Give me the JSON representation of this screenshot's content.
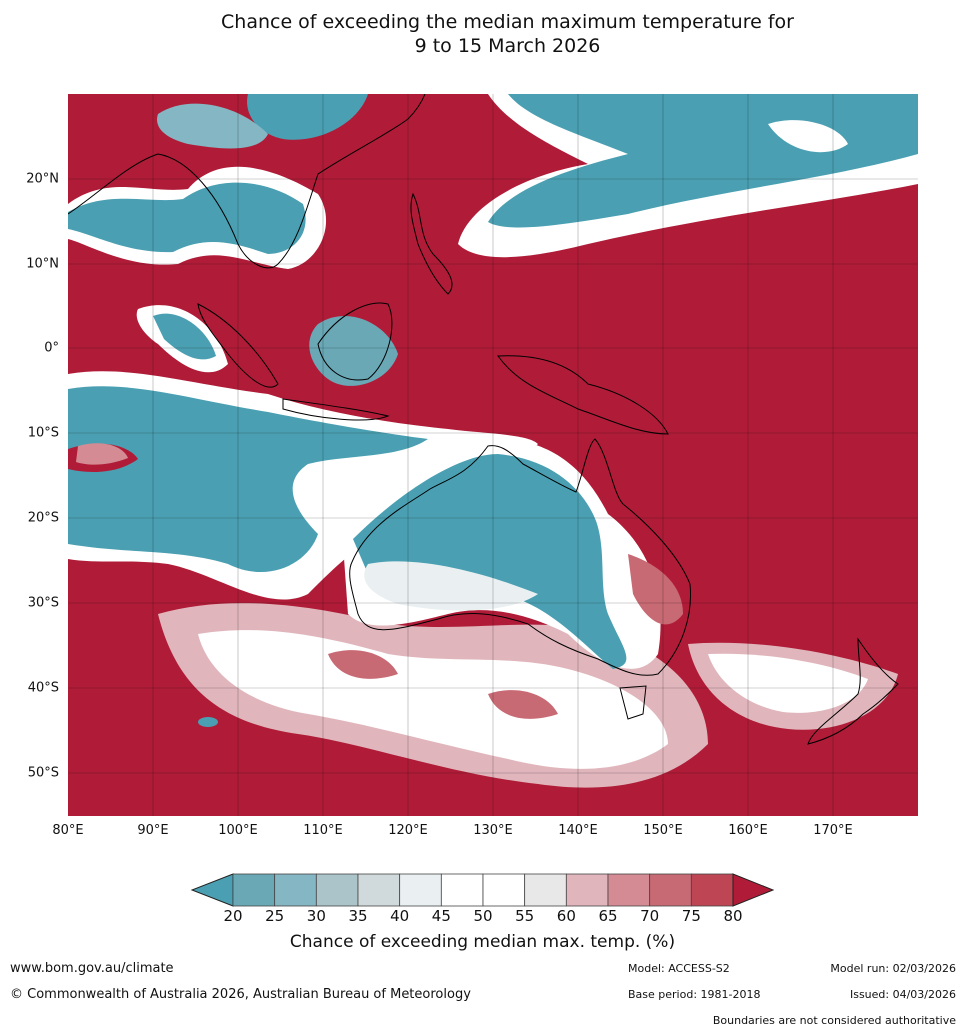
{
  "title": {
    "line1": "Chance of exceeding the median maximum temperature for",
    "line2": "9 to 15 March 2026"
  },
  "map": {
    "lat_labels": [
      "20°N",
      "10°N",
      "0°",
      "10°S",
      "20°S",
      "30°S",
      "40°S",
      "50°S"
    ],
    "lon_labels": [
      "80°E",
      "90°E",
      "100°E",
      "110°E",
      "120°E",
      "130°E",
      "140°E",
      "150°E",
      "160°E",
      "170°E"
    ],
    "extent": {
      "lon": [
        80,
        180
      ],
      "lat": [
        -55,
        30
      ]
    }
  },
  "colorbar": {
    "ticks": [
      "20",
      "25",
      "30",
      "35",
      "40",
      "45",
      "50",
      "55",
      "60",
      "65",
      "70",
      "75",
      "80"
    ],
    "colors": [
      "#4aa0b2",
      "#6aa8b6",
      "#85b6c3",
      "#aac4c9",
      "#d0d9db",
      "#eaf0f2",
      "#ffffff",
      "#ffffff",
      "#e8e8e8",
      "#e0b6bc",
      "#d48b93",
      "#c86a74",
      "#be4553",
      "#b01c38"
    ],
    "label": "Chance of exceeding median max. temp. (%)"
  },
  "footer": {
    "url": "www.bom.gov.au/climate",
    "copyright": "© Commonwealth of Australia 2026, Australian Bureau of Meteorology",
    "model": "Model: ACCESS-S2",
    "model_run": "Model run: 02/03/2026",
    "base_period": "Base period: 1981-2018",
    "issued": "Issued: 04/03/2026",
    "disclaimer": "Boundaries are not considered authoritative"
  }
}
